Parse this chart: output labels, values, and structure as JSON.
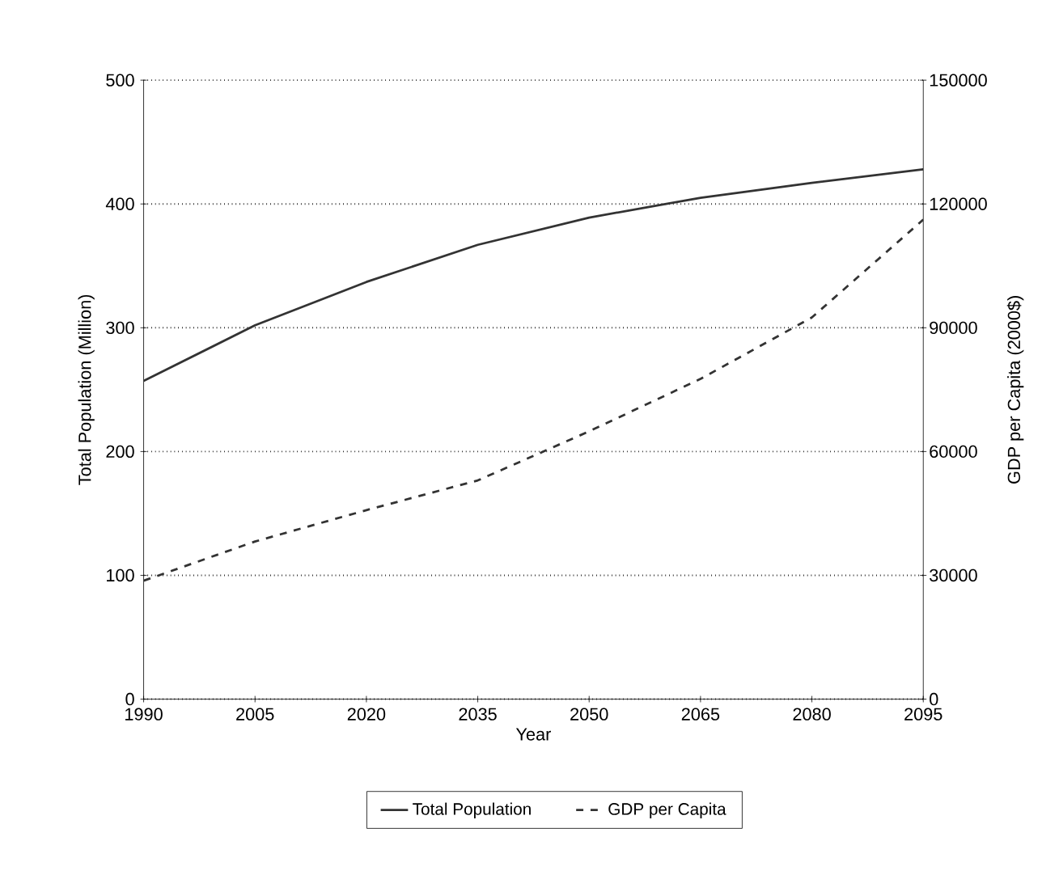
{
  "chart_data": {
    "type": "line",
    "xlabel": "Year",
    "ylabel": "Total Population (Million)",
    "y2label": "GDP per Capita (2000$)",
    "x": [
      1990,
      2005,
      2020,
      2035,
      2050,
      2065,
      2080,
      2095
    ],
    "series": [
      {
        "name": "Total Population",
        "color": "#333333",
        "line_style": "solid",
        "values": [
          257,
          302,
          337,
          367,
          389,
          405,
          417,
          428
        ]
      },
      {
        "name": "GDP per Capita",
        "color": "#333333",
        "line_style": "dashed",
        "axis": "y2",
        "values": [
          28700,
          38200,
          45800,
          53000,
          64900,
          77600,
          92500,
          116200
        ]
      }
    ],
    "xlim": [
      1990,
      2095
    ],
    "xticks": [
      1990,
      2005,
      2020,
      2035,
      2050,
      2065,
      2080,
      2095
    ],
    "ylim": [
      0,
      500
    ],
    "yticks": [
      0,
      100,
      200,
      300,
      400,
      500
    ],
    "y2lim": [
      0,
      150000
    ],
    "y2ticks": [
      0,
      30000,
      60000,
      90000,
      120000,
      150000
    ],
    "grid": "y",
    "legend": "bottom",
    "marker": "none"
  }
}
